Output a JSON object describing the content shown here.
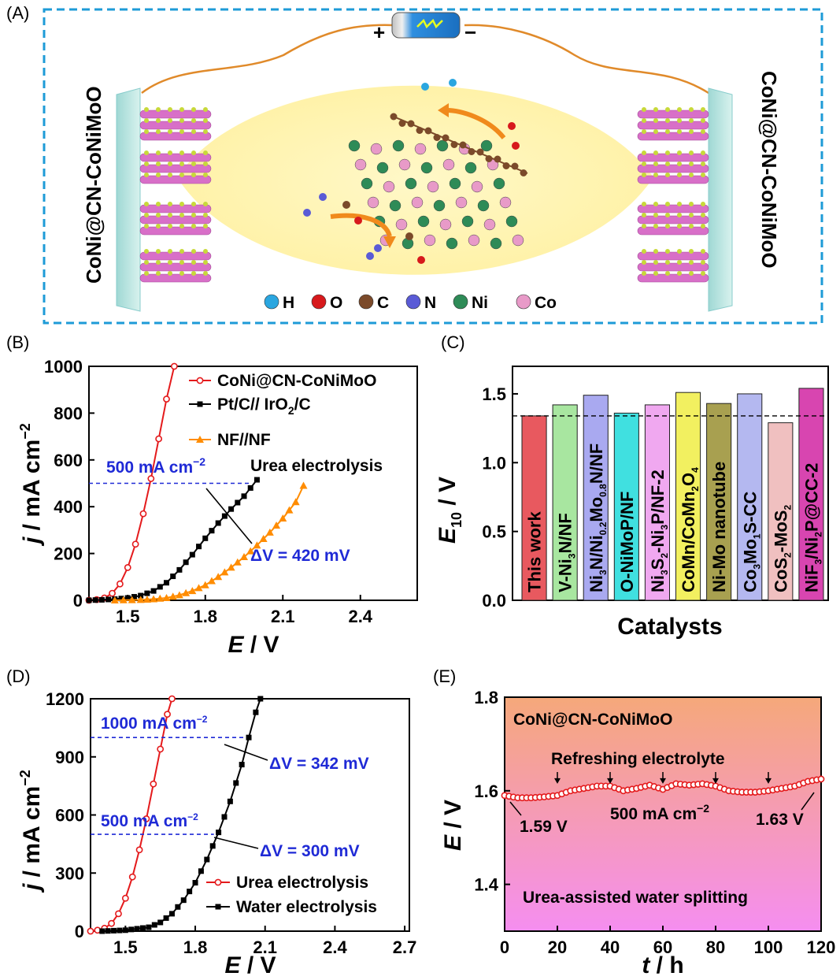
{
  "panel_labels": {
    "a": "(A)",
    "b": "(B)",
    "c": "(C)",
    "d": "(D)",
    "e": "(E)"
  },
  "schematic": {
    "left_electrode": "CoNi@CN-CoNiMoO",
    "right_electrode": "CoNi@CN-CoNiMoO",
    "battery_plus": "+",
    "battery_minus": "−",
    "legend": [
      {
        "label": "H",
        "color": "#2aa6e0"
      },
      {
        "label": "O",
        "color": "#d7191c"
      },
      {
        "label": "C",
        "color": "#7b4a2a"
      },
      {
        "label": "N",
        "color": "#5a5bd6"
      },
      {
        "label": "Ni",
        "color": "#2e8b57"
      },
      {
        "label": "Co",
        "color": "#e89ac8"
      }
    ]
  },
  "chart_data": [
    {
      "id": "B",
      "type": "line",
      "xlabel_main": "E",
      "xlabel_unit": " / V",
      "ylabel_main": "j",
      "ylabel_unit": " / mA cm",
      "ylabel_sup": "−2",
      "xlim": [
        1.35,
        2.62
      ],
      "ylim": [
        0,
        1000
      ],
      "xticks": [
        "1.5",
        "1.8",
        "2.1",
        "2.4"
      ],
      "xtick_values": [
        1.5,
        1.8,
        2.1,
        2.4
      ],
      "yticks": [
        "0",
        "200",
        "400",
        "600",
        "800",
        "1000"
      ],
      "ytick_values": [
        0,
        200,
        400,
        600,
        800,
        1000
      ],
      "series": [
        {
          "name": "CoNi@CN-CoNiMoO",
          "color": "#e41a1c",
          "marker": "circle",
          "x": [
            1.35,
            1.38,
            1.41,
            1.44,
            1.47,
            1.5,
            1.53,
            1.56,
            1.59,
            1.62,
            1.65,
            1.68
          ],
          "y": [
            0,
            3,
            10,
            30,
            70,
            140,
            240,
            370,
            520,
            690,
            860,
            1000
          ]
        },
        {
          "name": "Pt/C// IrO2/C",
          "color": "#000000",
          "marker": "square",
          "x": [
            1.35,
            1.4,
            1.45,
            1.5,
            1.55,
            1.6,
            1.65,
            1.7,
            1.75,
            1.8,
            1.85,
            1.9,
            1.95,
            2.0
          ],
          "y": [
            0,
            2,
            5,
            10,
            20,
            40,
            75,
            130,
            195,
            265,
            330,
            390,
            445,
            515
          ]
        },
        {
          "name": "NF//NF",
          "color": "#ff8c00",
          "marker": "triangle",
          "x": [
            1.45,
            1.55,
            1.6,
            1.65,
            1.7,
            1.75,
            1.8,
            1.85,
            1.9,
            1.95,
            2.0,
            2.05,
            2.1,
            2.15,
            2.18
          ],
          "y": [
            0,
            2,
            5,
            10,
            22,
            40,
            65,
            100,
            140,
            185,
            235,
            290,
            350,
            420,
            490
          ]
        }
      ],
      "annotations": {
        "current": "500 mA cm",
        "current_sup": "−2",
        "dv": "ΔV = 420 mV",
        "process": "Urea electrolysis",
        "hline_y": 500,
        "hline_x_start": 1.35,
        "hline_x_end": 1.98
      }
    },
    {
      "id": "C",
      "type": "bar",
      "xlabel": "Catalysts",
      "ylabel_main": "E",
      "ylabel_sub": "10",
      "ylabel_unit": " / V",
      "ylim": [
        0,
        1.7
      ],
      "yticks": [
        "0.0",
        "0.5",
        "1.0",
        "1.5"
      ],
      "ytick_values": [
        0,
        0.5,
        1.0,
        1.5
      ],
      "reference_line": 1.34,
      "categories": [
        {
          "parts": [
            [
              "This work",
              ""
            ]
          ],
          "value": 1.34,
          "color": "#e8595f",
          "label_color": "#ffff00"
        },
        {
          "parts": [
            [
              "V-Ni",
              ""
            ],
            [
              "3",
              "sub"
            ],
            [
              "N/NF",
              ""
            ]
          ],
          "value": 1.42,
          "color": "#a8e6a0",
          "label_color": "#000000"
        },
        {
          "parts": [
            [
              "Ni",
              ""
            ],
            [
              "3",
              "sub"
            ],
            [
              "N/Ni",
              ""
            ],
            [
              "0.2",
              "sub"
            ],
            [
              "Mo",
              ""
            ],
            [
              "0.8",
              "sub"
            ],
            [
              "N/NF",
              ""
            ]
          ],
          "value": 1.49,
          "color": "#a9a9f0",
          "label_color": "#000000"
        },
        {
          "parts": [
            [
              "O-NiMoP/NF",
              ""
            ]
          ],
          "value": 1.36,
          "color": "#40e0e0",
          "label_color": "#000000"
        },
        {
          "parts": [
            [
              "Ni",
              ""
            ],
            [
              "3",
              "sub"
            ],
            [
              "S",
              ""
            ],
            [
              "2",
              "sub"
            ],
            [
              "-Ni",
              ""
            ],
            [
              "3",
              "sub"
            ],
            [
              "P/NF-2",
              ""
            ]
          ],
          "value": 1.42,
          "color": "#f0a8f0",
          "label_color": "#000000"
        },
        {
          "parts": [
            [
              "CoMn/CoMn",
              ""
            ],
            [
              "2",
              "sub"
            ],
            [
              "O",
              ""
            ],
            [
              "4",
              "sub"
            ]
          ],
          "value": 1.51,
          "color": "#f2f060",
          "label_color": "#000000"
        },
        {
          "parts": [
            [
              "Ni-Mo nanotube",
              ""
            ]
          ],
          "value": 1.43,
          "color": "#a8a050",
          "label_color": "#000000"
        },
        {
          "parts": [
            [
              "Co",
              ""
            ],
            [
              "3",
              "sub"
            ],
            [
              "Mo",
              ""
            ],
            [
              "1",
              "sub"
            ],
            [
              "S-CC",
              ""
            ]
          ],
          "value": 1.5,
          "color": "#b4b8f0",
          "label_color": "#000000"
        },
        {
          "parts": [
            [
              "CoS",
              ""
            ],
            [
              "2",
              "sub"
            ],
            [
              "-MoS",
              ""
            ],
            [
              "2",
              "sub"
            ]
          ],
          "value": 1.29,
          "color": "#f0c0c0",
          "label_color": "#000000"
        },
        {
          "parts": [
            [
              "NiF",
              ""
            ],
            [
              "3",
              "sub"
            ],
            [
              "/Ni",
              ""
            ],
            [
              "2",
              "sub"
            ],
            [
              "P@CC-2",
              ""
            ]
          ],
          "value": 1.54,
          "color": "#d845b0",
          "label_color": "#000000"
        }
      ]
    },
    {
      "id": "D",
      "type": "line",
      "xlabel_main": "E",
      "xlabel_unit": " / V",
      "ylabel_main": "j",
      "ylabel_unit": " / mA cm",
      "ylabel_sup": "−2",
      "xlim": [
        1.35,
        2.72
      ],
      "ylim": [
        0,
        1200
      ],
      "xticks": [
        "1.5",
        "1.8",
        "2.1",
        "2.4",
        "2.7"
      ],
      "xtick_values": [
        1.5,
        1.8,
        2.1,
        2.4,
        2.7
      ],
      "yticks": [
        "0",
        "300",
        "600",
        "900",
        "1200"
      ],
      "ytick_values": [
        0,
        300,
        600,
        900,
        1200
      ],
      "series": [
        {
          "name": "Urea electrolysis",
          "color": "#e41a1c",
          "marker": "circle",
          "x": [
            1.35,
            1.38,
            1.41,
            1.44,
            1.47,
            1.5,
            1.53,
            1.56,
            1.59,
            1.62,
            1.65,
            1.68,
            1.7
          ],
          "y": [
            0,
            5,
            15,
            40,
            90,
            170,
            280,
            420,
            580,
            760,
            940,
            1120,
            1200
          ]
        },
        {
          "name": "Water electrolysis",
          "color": "#000000",
          "marker": "square",
          "x": [
            1.4,
            1.5,
            1.6,
            1.65,
            1.7,
            1.75,
            1.8,
            1.85,
            1.9,
            1.95,
            2.0,
            2.03,
            2.06,
            2.08
          ],
          "y": [
            0,
            5,
            20,
            45,
            90,
            160,
            250,
            370,
            510,
            670,
            860,
            1000,
            1130,
            1200
          ]
        }
      ],
      "annotations": {
        "current_1000": "1000 mA cm",
        "current_500": "500 mA cm",
        "current_sup": "−2",
        "dv_342": "ΔV = 342 mV",
        "dv_300": "ΔV = 300 mV",
        "hline_1000": {
          "y": 1000,
          "x_end": 2.01
        },
        "hline_500": {
          "y": 500,
          "x_end": 1.88
        }
      }
    },
    {
      "id": "E",
      "type": "line",
      "xlabel_main": "t",
      "xlabel_unit": " / h",
      "ylabel_main": "E",
      "ylabel_unit": " / V",
      "xlim": [
        0,
        120
      ],
      "ylim": [
        1.3,
        1.8
      ],
      "xticks": [
        "0",
        "20",
        "40",
        "60",
        "80",
        "100",
        "120"
      ],
      "xtick_values": [
        0,
        20,
        40,
        60,
        80,
        100,
        120
      ],
      "yticks": [
        "1.4",
        "1.6",
        "1.8"
      ],
      "ytick_values": [
        1.4,
        1.6,
        1.8
      ],
      "series": [
        {
          "name": "CoNi@CN-CoNiMoO",
          "color": "#e41a1c",
          "marker": "circle",
          "x": [
            0,
            5,
            10,
            15,
            20,
            25,
            30,
            35,
            40,
            45,
            50,
            55,
            60,
            65,
            70,
            75,
            80,
            85,
            90,
            95,
            100,
            105,
            110,
            115,
            120
          ],
          "y": [
            1.59,
            1.585,
            1.585,
            1.587,
            1.59,
            1.6,
            1.605,
            1.61,
            1.61,
            1.6,
            1.605,
            1.612,
            1.603,
            1.615,
            1.612,
            1.615,
            1.61,
            1.6,
            1.597,
            1.597,
            1.6,
            1.605,
            1.61,
            1.62,
            1.625
          ]
        }
      ],
      "annotations": {
        "title": "CoNi@CN-CoNiMoO",
        "refresh": "Refreshing electrolyte",
        "current": "500 mA cm",
        "current_sup": "−2",
        "start": "1.59 V",
        "end": "1.63 V",
        "mode": "Urea-assisted water splitting",
        "refresh_times": [
          20,
          40,
          60,
          80,
          100
        ],
        "bg_top": "#f5a87a",
        "bg_bottom": "#f58ef0"
      }
    }
  ]
}
